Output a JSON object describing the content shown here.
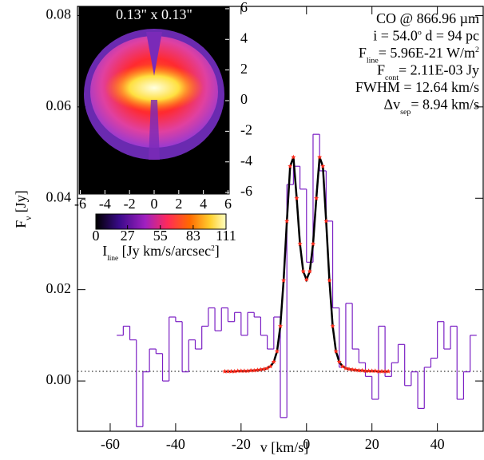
{
  "chart_data": [
    {
      "type": "line",
      "xlabel": "v [km/s]",
      "ylabel": [
        {
          "text": "F"
        },
        {
          "text": "ν",
          "shift": "sub"
        },
        {
          "text": " [Jy]"
        }
      ],
      "xlim": [
        -70,
        54
      ],
      "ylim": [
        -0.011,
        0.082
      ],
      "xticks": [
        -60,
        -40,
        -20,
        0,
        20,
        40
      ],
      "yticks": [
        {
          "value": 0,
          "label": "0.00"
        },
        0.02,
        0.04,
        0.06,
        0.08
      ],
      "hline": 0.00211,
      "series": [
        {
          "kind": "step",
          "color": "#7b1fc4",
          "bins": [
            -58,
            -56,
            -54,
            -52,
            -50,
            -48,
            -46,
            -44,
            -42,
            -40,
            -38,
            -36,
            -34,
            -32,
            -30,
            -28,
            -26,
            -24,
            -22,
            -20,
            -18,
            -16,
            -14,
            -12,
            -10,
            -8,
            -6,
            -4,
            -2,
            0,
            2,
            4,
            6,
            8,
            10,
            12,
            14,
            16,
            18,
            20,
            22,
            24,
            26,
            28,
            30,
            32,
            34,
            36,
            38,
            40,
            42,
            44,
            46,
            48,
            50,
            52
          ],
          "values": [
            0.01,
            0.012,
            0.009,
            -0.01,
            0.002,
            0.007,
            0.006,
            0.0,
            0.014,
            0.013,
            0.002,
            0.009,
            0.007,
            0.012,
            0.016,
            0.011,
            0.016,
            0.013,
            0.015,
            0.01,
            0.015,
            0.014,
            0.01,
            0.007,
            0.014,
            -0.008,
            0.043,
            0.047,
            0.042,
            0.026,
            0.054,
            0.046,
            0.035,
            0.016,
            0.003,
            0.017,
            0.007,
            0.004,
            0.001,
            -0.004,
            0.012,
            0.001,
            0.004,
            0.008,
            -0.001,
            0.002,
            -0.006,
            0.003,
            0.005,
            0.013,
            0.007,
            0.012,
            -0.004,
            0.002,
            0.01
          ]
        },
        {
          "kind": "line",
          "color": "#000000",
          "marker_color": "#ff2a1a",
          "x": [
            -25,
            -24,
            -23,
            -22,
            -21,
            -20,
            -19,
            -18,
            -17,
            -16,
            -15,
            -14,
            -13,
            -12,
            -11,
            -10,
            -9,
            -8,
            -7,
            -6,
            -5,
            -4,
            -3,
            -2,
            -1,
            0,
            1,
            2,
            3,
            4,
            5,
            6,
            7,
            8,
            9,
            10,
            11,
            12,
            13,
            14,
            15,
            16,
            17,
            18,
            19,
            20,
            21,
            22,
            23,
            24,
            25
          ],
          "values": [
            0.0021,
            0.0021,
            0.0021,
            0.0021,
            0.0022,
            0.0022,
            0.0022,
            0.0022,
            0.0023,
            0.0023,
            0.0024,
            0.0025,
            0.0026,
            0.0028,
            0.0032,
            0.0042,
            0.0065,
            0.012,
            0.022,
            0.035,
            0.047,
            0.049,
            0.04,
            0.03,
            0.024,
            0.0222,
            0.024,
            0.03,
            0.04,
            0.049,
            0.047,
            0.035,
            0.022,
            0.012,
            0.0065,
            0.0042,
            0.0032,
            0.0028,
            0.0026,
            0.0025,
            0.0024,
            0.0023,
            0.0023,
            0.0022,
            0.0022,
            0.0022,
            0.0022,
            0.0021,
            0.0021,
            0.0021,
            0.0021
          ]
        }
      ],
      "annotations": [
        [
          {
            "text": "CO @ 866.96 µm"
          }
        ],
        [
          {
            "text": "i = 54.0"
          },
          {
            "text": "o",
            "shift": "sup"
          },
          {
            "text": "   d = 94 pc"
          }
        ],
        [
          {
            "text": "F"
          },
          {
            "text": "line",
            "shift": "sub"
          },
          {
            "text": "= 5.96E-21 W/m"
          },
          {
            "text": "2",
            "shift": "sup"
          }
        ],
        [
          {
            "text": "F"
          },
          {
            "text": "cont",
            "shift": "sub"
          },
          {
            "text": "= 2.11E-03 Jy"
          }
        ],
        [
          {
            "text": "FWHM = 12.64 km/s"
          }
        ],
        [
          {
            "text": "Δv"
          },
          {
            "text": "sep",
            "shift": "sub"
          },
          {
            "text": "= 8.94 km/s"
          }
        ]
      ]
    },
    {
      "type": "image",
      "title": "0.13\" x 0.13\"",
      "xlim": [
        -6.1,
        6.1
      ],
      "ylim": [
        -6.1,
        6.1
      ],
      "xticks": [
        -6,
        -4,
        -2,
        0,
        2,
        4,
        6
      ],
      "yticks": [
        -6,
        -4,
        -2,
        0,
        2,
        4,
        6
      ],
      "clim": [
        0,
        111
      ],
      "cticks": [
        0,
        27,
        55,
        83,
        111
      ],
      "clabel": [
        {
          "text": "I"
        },
        {
          "text": "line",
          "shift": "sub"
        },
        {
          "text": " [Jy km/s/arcsec"
        },
        {
          "text": "2",
          "shift": "sup"
        },
        {
          "text": "]"
        }
      ]
    }
  ]
}
